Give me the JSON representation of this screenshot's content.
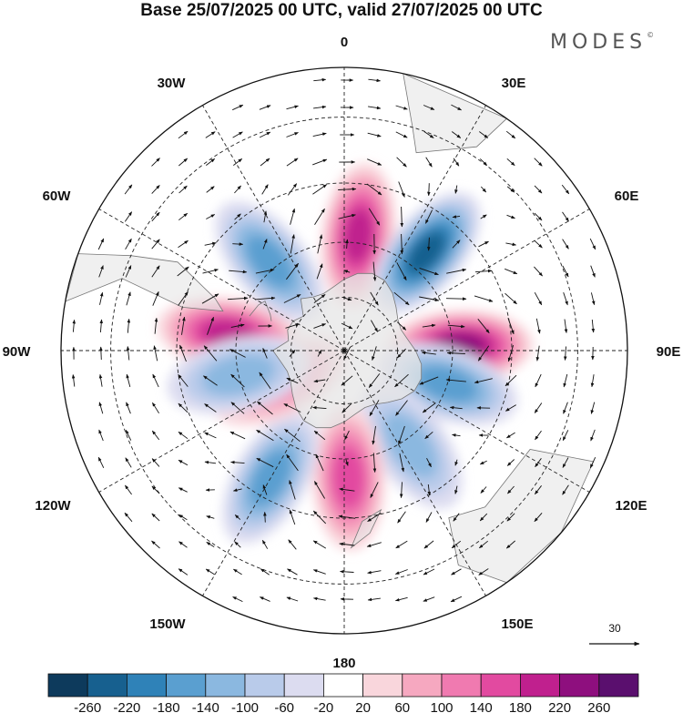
{
  "title": "Base 25/07/2025 00 UTC, valid 27/07/2025 00 UTC",
  "brand": "MODES",
  "brand_mark": "©",
  "longitude_labels": {
    "lon_0": "0",
    "lon_30e": "30E",
    "lon_60e": "60E",
    "lon_90e": "90E",
    "lon_120e": "120E",
    "lon_150e": "150E",
    "lon_180": "180",
    "lon_150w": "150W",
    "lon_120w": "120W",
    "lon_90w": "90W",
    "lon_60w": "60W",
    "lon_30w": "30W"
  },
  "reference_vector": {
    "label": "30"
  },
  "colorbar": {
    "ticks": [
      "-260",
      "-220",
      "-180",
      "-140",
      "-100",
      "-60",
      "-20",
      "20",
      "60",
      "100",
      "140",
      "180",
      "220",
      "260"
    ],
    "colors": [
      "#0d3a5c",
      "#17608f",
      "#2f82b8",
      "#5a9fd0",
      "#8bb8e0",
      "#b9cbea",
      "#dcdcf0",
      "#ffffff",
      "#f9d6dc",
      "#f6a8c0",
      "#f07ab0",
      "#e24aa0",
      "#c0208e",
      "#8e0f7e",
      "#5a0f6e"
    ]
  },
  "chart_data": {
    "type": "map",
    "projection": "south polar stereographic",
    "field_units": "contour anomaly values per colour bar",
    "color_levels": [
      -260,
      -220,
      -180,
      -140,
      -100,
      -60,
      -20,
      20,
      60,
      100,
      140,
      180,
      220,
      260
    ],
    "wind_reference_speed": 30,
    "anomaly_centers": [
      {
        "lon": 7,
        "lat": -58,
        "value": 210
      },
      {
        "lon": 40,
        "lat": -55,
        "value": -240
      },
      {
        "lon": 88,
        "lat": -58,
        "value": 240
      },
      {
        "lon": 108,
        "lat": -60,
        "value": -160
      },
      {
        "lon": 145,
        "lat": -58,
        "value": -120
      },
      {
        "lon": 178,
        "lat": -55,
        "value": 160
      },
      {
        "lon": -150,
        "lat": -50,
        "value": -140
      },
      {
        "lon": -115,
        "lat": -70,
        "value": 110
      },
      {
        "lon": -82,
        "lat": -58,
        "value": 200
      },
      {
        "lon": -103,
        "lat": -60,
        "value": -120
      },
      {
        "lon": -40,
        "lat": -58,
        "value": -140
      }
    ]
  }
}
